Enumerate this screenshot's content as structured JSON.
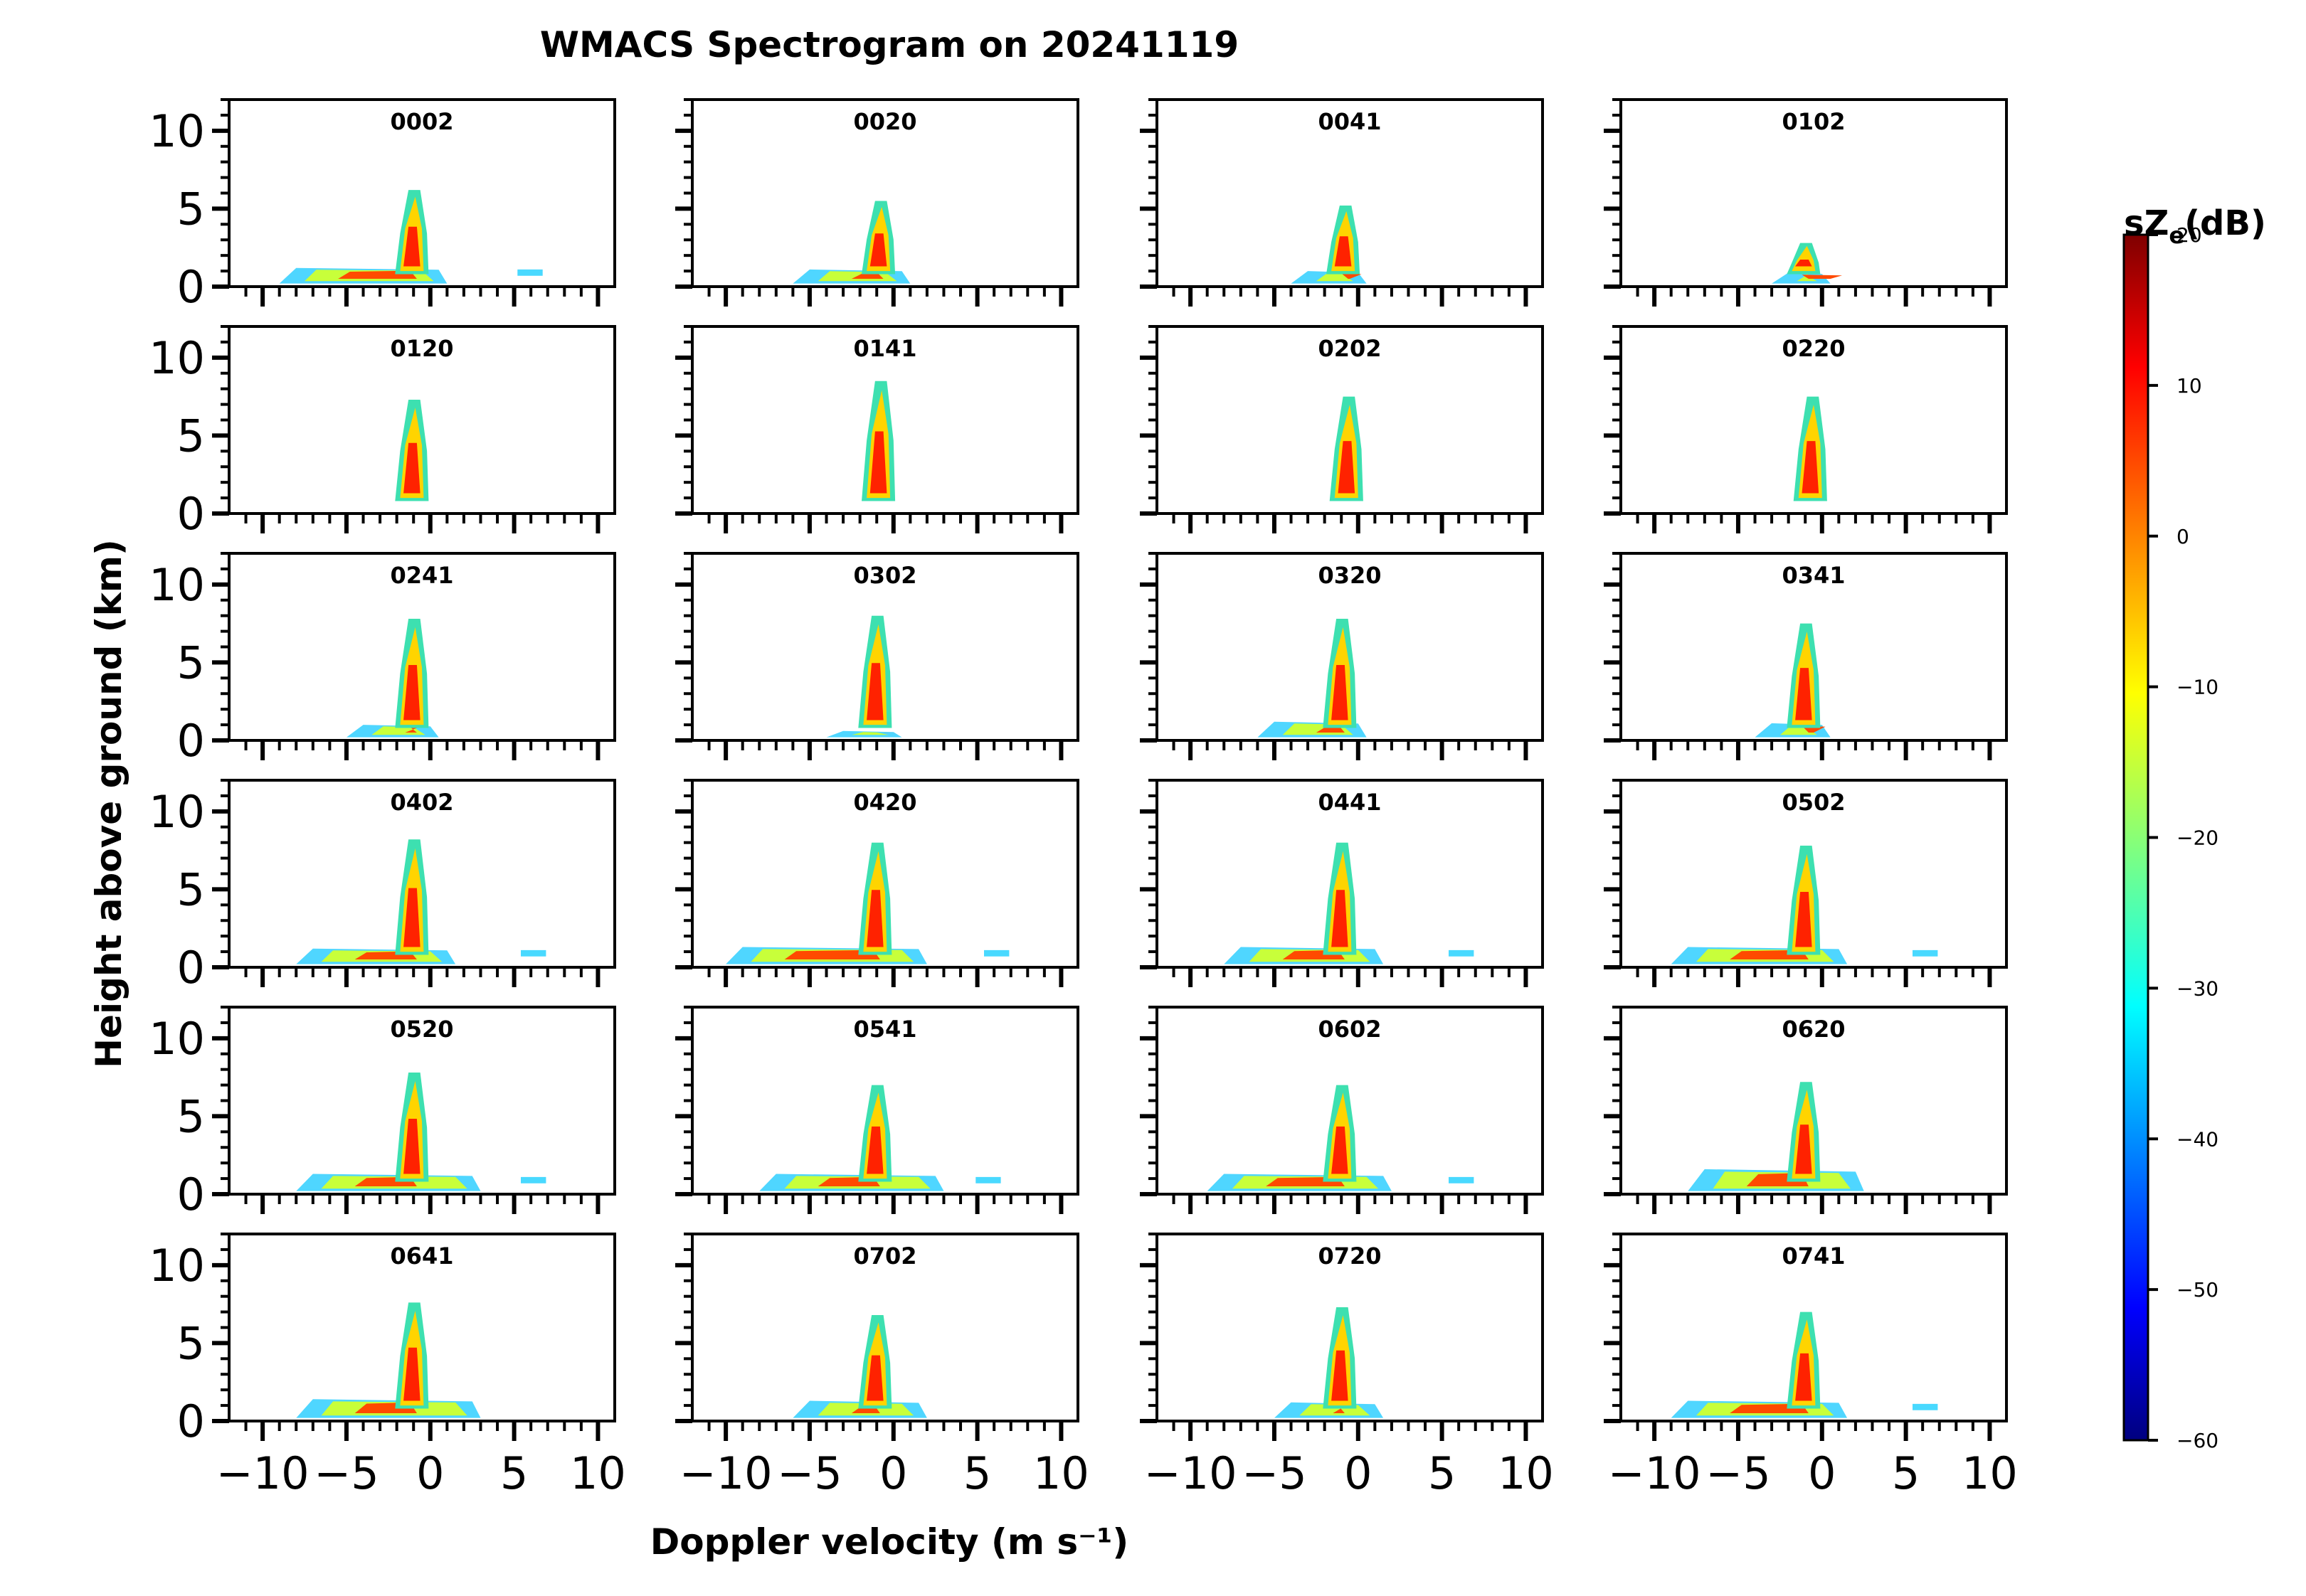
{
  "chart_data": {
    "type": "heatmap",
    "title": "WMACS Spectrogram on 20241119",
    "xlabel": "Doppler velocity (m s⁻¹)",
    "ylabel": "Height above ground (km)",
    "xlim": [
      -12,
      11
    ],
    "ylim": [
      0,
      12
    ],
    "x_ticks": [
      -10,
      -5,
      0,
      5,
      10
    ],
    "x_tick_labels": [
      "−10",
      "−5",
      "0",
      "5",
      "10"
    ],
    "y_ticks": [
      0,
      5,
      10
    ],
    "y_tick_labels": [
      "0",
      "5",
      "10"
    ],
    "colorbar": {
      "label": "sZ",
      "label_sub": "e",
      "label_suffix": "(dB)",
      "min": -60,
      "max": 20,
      "ticks": [
        20,
        10,
        0,
        -10,
        -20,
        -30,
        -40,
        -50,
        -60
      ],
      "tick_labels": [
        "20",
        "10",
        "0",
        "−10",
        "−20",
        "−30",
        "−40",
        "−50",
        "−60"
      ],
      "colormap": "jet"
    },
    "panels": [
      {
        "time": "0002",
        "top_km": 6.2,
        "spread_km": 1.2,
        "left_ms": -9.0,
        "right_ms": 1.0,
        "core_ms": -1.0,
        "echo_ms": 5.8
      },
      {
        "time": "0020",
        "top_km": 5.5,
        "spread_km": 1.1,
        "left_ms": -6.0,
        "right_ms": 1.0,
        "core_ms": -0.8,
        "echo_ms": null
      },
      {
        "time": "0041",
        "top_km": 5.2,
        "spread_km": 1.0,
        "left_ms": -4.0,
        "right_ms": 0.5,
        "core_ms": -0.8,
        "echo_ms": null
      },
      {
        "time": "0102",
        "top_km": 2.8,
        "spread_km": 0.9,
        "left_ms": -3.0,
        "right_ms": 0.5,
        "core_ms": -1.0,
        "echo_ms": null
      },
      {
        "time": "0120",
        "top_km": 7.3,
        "spread_km": 0.0,
        "left_ms": -2.0,
        "right_ms": 0.5,
        "core_ms": -1.0,
        "echo_ms": null
      },
      {
        "time": "0141",
        "top_km": 8.5,
        "spread_km": 0.0,
        "left_ms": -1.5,
        "right_ms": 0.0,
        "core_ms": -0.8,
        "echo_ms": null
      },
      {
        "time": "0202",
        "top_km": 7.5,
        "spread_km": 0.0,
        "left_ms": -1.5,
        "right_ms": 0.5,
        "core_ms": -0.6,
        "echo_ms": null
      },
      {
        "time": "0220",
        "top_km": 7.5,
        "spread_km": 0.0,
        "left_ms": -1.5,
        "right_ms": 0.5,
        "core_ms": -0.6,
        "echo_ms": null
      },
      {
        "time": "0241",
        "top_km": 7.8,
        "spread_km": 1.0,
        "left_ms": -5.0,
        "right_ms": 0.5,
        "core_ms": -1.0,
        "echo_ms": null
      },
      {
        "time": "0302",
        "top_km": 8.0,
        "spread_km": 0.6,
        "left_ms": -4.0,
        "right_ms": 0.5,
        "core_ms": -1.0,
        "echo_ms": null
      },
      {
        "time": "0320",
        "top_km": 7.8,
        "spread_km": 1.2,
        "left_ms": -6.0,
        "right_ms": 0.5,
        "core_ms": -1.0,
        "echo_ms": null
      },
      {
        "time": "0341",
        "top_km": 7.5,
        "spread_km": 1.1,
        "left_ms": -4.0,
        "right_ms": 0.5,
        "core_ms": -1.0,
        "echo_ms": null
      },
      {
        "time": "0402",
        "top_km": 8.2,
        "spread_km": 1.2,
        "left_ms": -8.0,
        "right_ms": 1.5,
        "core_ms": -1.0,
        "echo_ms": 6.0
      },
      {
        "time": "0420",
        "top_km": 8.0,
        "spread_km": 1.3,
        "left_ms": -10.0,
        "right_ms": 2.0,
        "core_ms": -1.0,
        "echo_ms": 6.0
      },
      {
        "time": "0441",
        "top_km": 8.0,
        "spread_km": 1.3,
        "left_ms": -8.0,
        "right_ms": 1.5,
        "core_ms": -1.0,
        "echo_ms": 6.0
      },
      {
        "time": "0502",
        "top_km": 7.8,
        "spread_km": 1.3,
        "left_ms": -9.0,
        "right_ms": 1.5,
        "core_ms": -1.0,
        "echo_ms": 6.0
      },
      {
        "time": "0520",
        "top_km": 7.8,
        "spread_km": 1.3,
        "left_ms": -8.0,
        "right_ms": 3.0,
        "core_ms": -1.0,
        "echo_ms": 6.0
      },
      {
        "time": "0541",
        "top_km": 7.0,
        "spread_km": 1.3,
        "left_ms": -8.0,
        "right_ms": 3.0,
        "core_ms": -1.0,
        "echo_ms": 5.5
      },
      {
        "time": "0602",
        "top_km": 7.0,
        "spread_km": 1.3,
        "left_ms": -9.0,
        "right_ms": 2.0,
        "core_ms": -1.0,
        "echo_ms": 6.0
      },
      {
        "time": "0620",
        "top_km": 7.2,
        "spread_km": 1.6,
        "left_ms": -8.0,
        "right_ms": 2.5,
        "core_ms": -1.0,
        "echo_ms": null
      },
      {
        "time": "0641",
        "top_km": 7.6,
        "spread_km": 1.4,
        "left_ms": -8.0,
        "right_ms": 3.0,
        "core_ms": -1.0,
        "echo_ms": null
      },
      {
        "time": "0702",
        "top_km": 6.8,
        "spread_km": 1.3,
        "left_ms": -6.0,
        "right_ms": 2.0,
        "core_ms": -1.0,
        "echo_ms": null
      },
      {
        "time": "0720",
        "top_km": 7.3,
        "spread_km": 1.2,
        "left_ms": -5.0,
        "right_ms": 1.5,
        "core_ms": -1.0,
        "echo_ms": null
      },
      {
        "time": "0741",
        "top_km": 7.0,
        "spread_km": 1.3,
        "left_ms": -9.0,
        "right_ms": 1.5,
        "core_ms": -1.0,
        "echo_ms": 6.0
      }
    ]
  }
}
